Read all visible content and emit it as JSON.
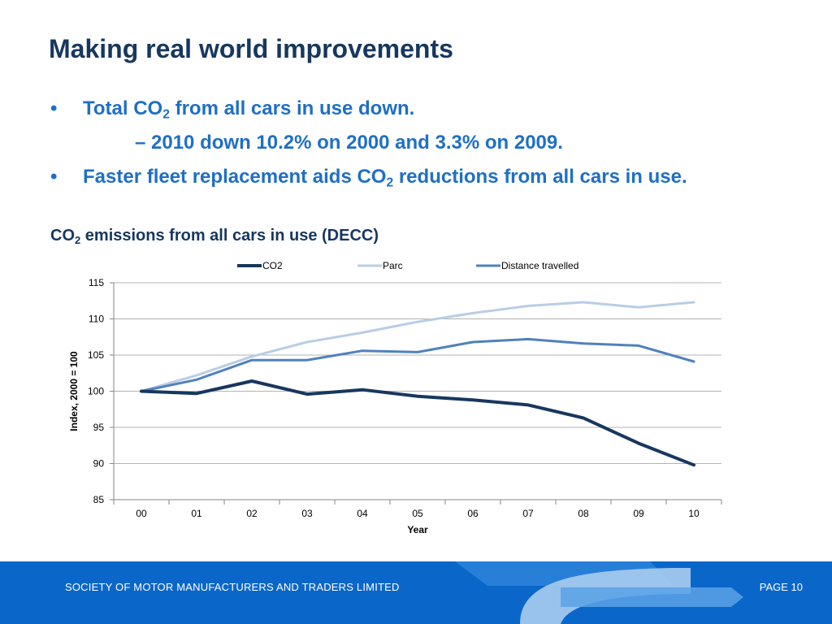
{
  "slide": {
    "title": "Making real world improvements",
    "bullets": [
      {
        "text_before": "Total CO",
        "sub": "2",
        "text_after": " from all cars in use down."
      },
      {
        "text_before": "Faster fleet replacement aids CO",
        "sub": "2",
        "text_after": " reductions from all cars in use."
      }
    ],
    "sub_bullet": "– 2010 down 10.2% on 2000 and 3.3% on 2009.",
    "chart_title": {
      "before": "CO",
      "sub": "2",
      "after": " emissions from all cars in use (DECC)"
    }
  },
  "footer": {
    "left": "SOCIETY OF MOTOR MANUFACTURERS AND TRADERS LIMITED",
    "right": "PAGE 10"
  },
  "chart_data": {
    "type": "line",
    "categories": [
      "00",
      "01",
      "02",
      "03",
      "04",
      "05",
      "06",
      "07",
      "08",
      "09",
      "10"
    ],
    "xlabel": "Year",
    "ylabel": "Index, 2000 = 100",
    "ylim": [
      85,
      115
    ],
    "yticks": [
      85,
      90,
      95,
      100,
      105,
      110,
      115
    ],
    "grid": true,
    "legend": "top",
    "series": [
      {
        "name": "CO2",
        "color": "#17375e",
        "values": [
          100,
          99.7,
          101.4,
          99.6,
          100.2,
          99.3,
          98.8,
          98.1,
          96.3,
          92.8,
          89.8
        ]
      },
      {
        "name": "Parc",
        "color": "#b9cde5",
        "values": [
          100,
          102.2,
          104.8,
          106.8,
          108.1,
          109.6,
          110.8,
          111.8,
          112.3,
          111.6,
          112.3
        ]
      },
      {
        "name": "Distance travelled",
        "color": "#4f81bd",
        "values": [
          100,
          101.6,
          104.3,
          104.3,
          105.6,
          105.4,
          106.8,
          107.2,
          106.6,
          106.3,
          104.1
        ]
      }
    ]
  }
}
